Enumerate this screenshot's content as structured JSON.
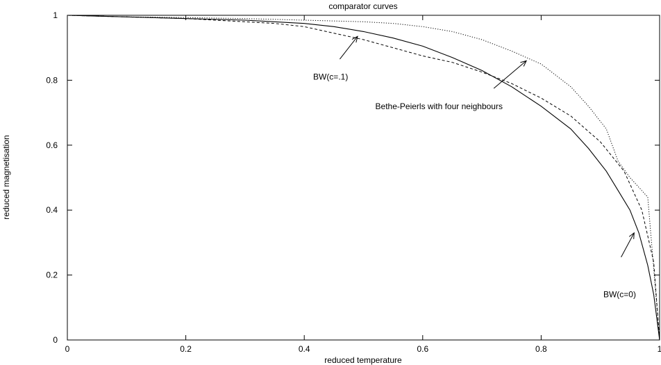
{
  "chart_data": {
    "type": "line",
    "title": "comparator curves",
    "xlabel": "reduced temperature",
    "ylabel": "reduced magnetisation",
    "xlim": [
      0,
      1
    ],
    "ylim": [
      0,
      1
    ],
    "grid": false,
    "x_ticks": [
      {
        "value": 0,
        "label": "0"
      },
      {
        "value": 0.2,
        "label": "0.2"
      },
      {
        "value": 0.4,
        "label": "0.4"
      },
      {
        "value": 0.6,
        "label": "0.6"
      },
      {
        "value": 0.8,
        "label": "0.8"
      },
      {
        "value": 1,
        "label": "1"
      }
    ],
    "y_ticks": [
      {
        "value": 0,
        "label": "0"
      },
      {
        "value": 0.2,
        "label": "0.2"
      },
      {
        "value": 0.4,
        "label": "0.4"
      },
      {
        "value": 0.6,
        "label": "0.6"
      },
      {
        "value": 0.8,
        "label": "0.8"
      },
      {
        "value": 1,
        "label": "1"
      }
    ],
    "series": [
      {
        "style": "solid",
        "x": [
          0,
          0.1,
          0.2,
          0.3,
          0.4,
          0.45,
          0.5,
          0.55,
          0.6,
          0.65,
          0.7,
          0.75,
          0.8,
          0.85,
          0.88,
          0.91,
          0.93,
          0.95,
          0.965,
          0.98,
          0.99,
          1.0
        ],
        "y": [
          1.0,
          0.995,
          0.99,
          0.985,
          0.975,
          0.965,
          0.95,
          0.93,
          0.905,
          0.87,
          0.83,
          0.78,
          0.72,
          0.65,
          0.59,
          0.52,
          0.46,
          0.4,
          0.33,
          0.23,
          0.14,
          0.0
        ]
      },
      {
        "style": "dashed",
        "x": [
          0,
          0.1,
          0.2,
          0.3,
          0.35,
          0.4,
          0.45,
          0.5,
          0.55,
          0.6,
          0.65,
          0.7,
          0.75,
          0.8,
          0.85,
          0.9,
          0.94,
          0.97,
          0.99,
          1.0
        ],
        "y": [
          1.0,
          0.995,
          0.99,
          0.98,
          0.975,
          0.965,
          0.945,
          0.925,
          0.9,
          0.875,
          0.855,
          0.825,
          0.79,
          0.745,
          0.69,
          0.61,
          0.52,
          0.4,
          0.24,
          0.0
        ]
      },
      {
        "style": "dotted",
        "x": [
          0,
          0.1,
          0.2,
          0.3,
          0.4,
          0.5,
          0.55,
          0.6,
          0.65,
          0.7,
          0.75,
          0.8,
          0.85,
          0.88,
          0.91,
          0.93,
          0.95,
          0.96,
          0.98,
          0.99,
          1.0
        ],
        "y": [
          1.0,
          0.995,
          0.993,
          0.99,
          0.985,
          0.98,
          0.975,
          0.965,
          0.95,
          0.925,
          0.89,
          0.85,
          0.78,
          0.72,
          0.65,
          0.55,
          0.5,
          0.48,
          0.44,
          0.22,
          0.0
        ]
      }
    ],
    "annotations": [
      {
        "text": "BW(c=.1)",
        "text_x": 0.415,
        "text_y": 0.81,
        "arrow_from": [
          0.46,
          0.865
        ],
        "arrow_to": [
          0.49,
          0.935
        ]
      },
      {
        "text": "Bethe-Peierls with four neighbours",
        "text_x": 0.52,
        "text_y": 0.72,
        "arrow_from": [
          0.72,
          0.775
        ],
        "arrow_to": [
          0.775,
          0.86
        ]
      },
      {
        "text": "BW(c=0)",
        "text_x": 0.905,
        "text_y": 0.14,
        "arrow_from": [
          0.935,
          0.255
        ],
        "arrow_to": [
          0.957,
          0.33
        ]
      }
    ]
  }
}
